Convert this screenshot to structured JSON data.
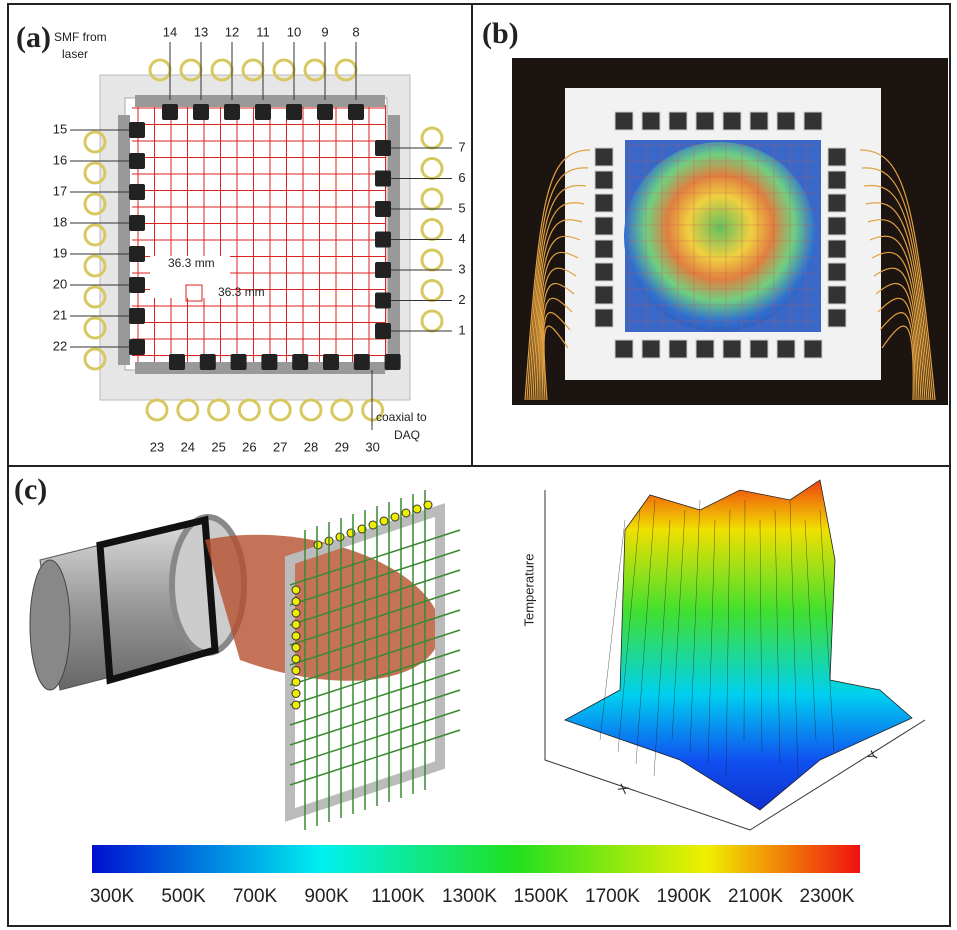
{
  "panel_a": {
    "label": "(a)",
    "fiber_note": [
      "SMF from",
      "laser"
    ],
    "spacing_h": "36.3 mm",
    "spacing_v": "36.3 mm",
    "coax_note": [
      "coaxial to",
      "DAQ"
    ],
    "ports_top": [
      "14",
      "13",
      "12",
      "11",
      "10",
      "9",
      "8"
    ],
    "ports_right": [
      "7",
      "6",
      "5",
      "4",
      "3",
      "2",
      "1"
    ],
    "ports_left": [
      "15",
      "16",
      "17",
      "18",
      "19",
      "20",
      "21",
      "22"
    ],
    "ports_bottom": [
      "23",
      "24",
      "25",
      "26",
      "27",
      "28",
      "29",
      "30"
    ]
  },
  "panel_b": {
    "label": "(b)"
  },
  "panel_c": {
    "label": "(c)",
    "z_axis": "Temperature",
    "x_axis": "X",
    "y_axis": "Y",
    "colorbar": [
      "300K",
      "500K",
      "700K",
      "900K",
      "1100K",
      "1300K",
      "1500K",
      "1700K",
      "1900K",
      "2100K",
      "2300K"
    ]
  }
}
